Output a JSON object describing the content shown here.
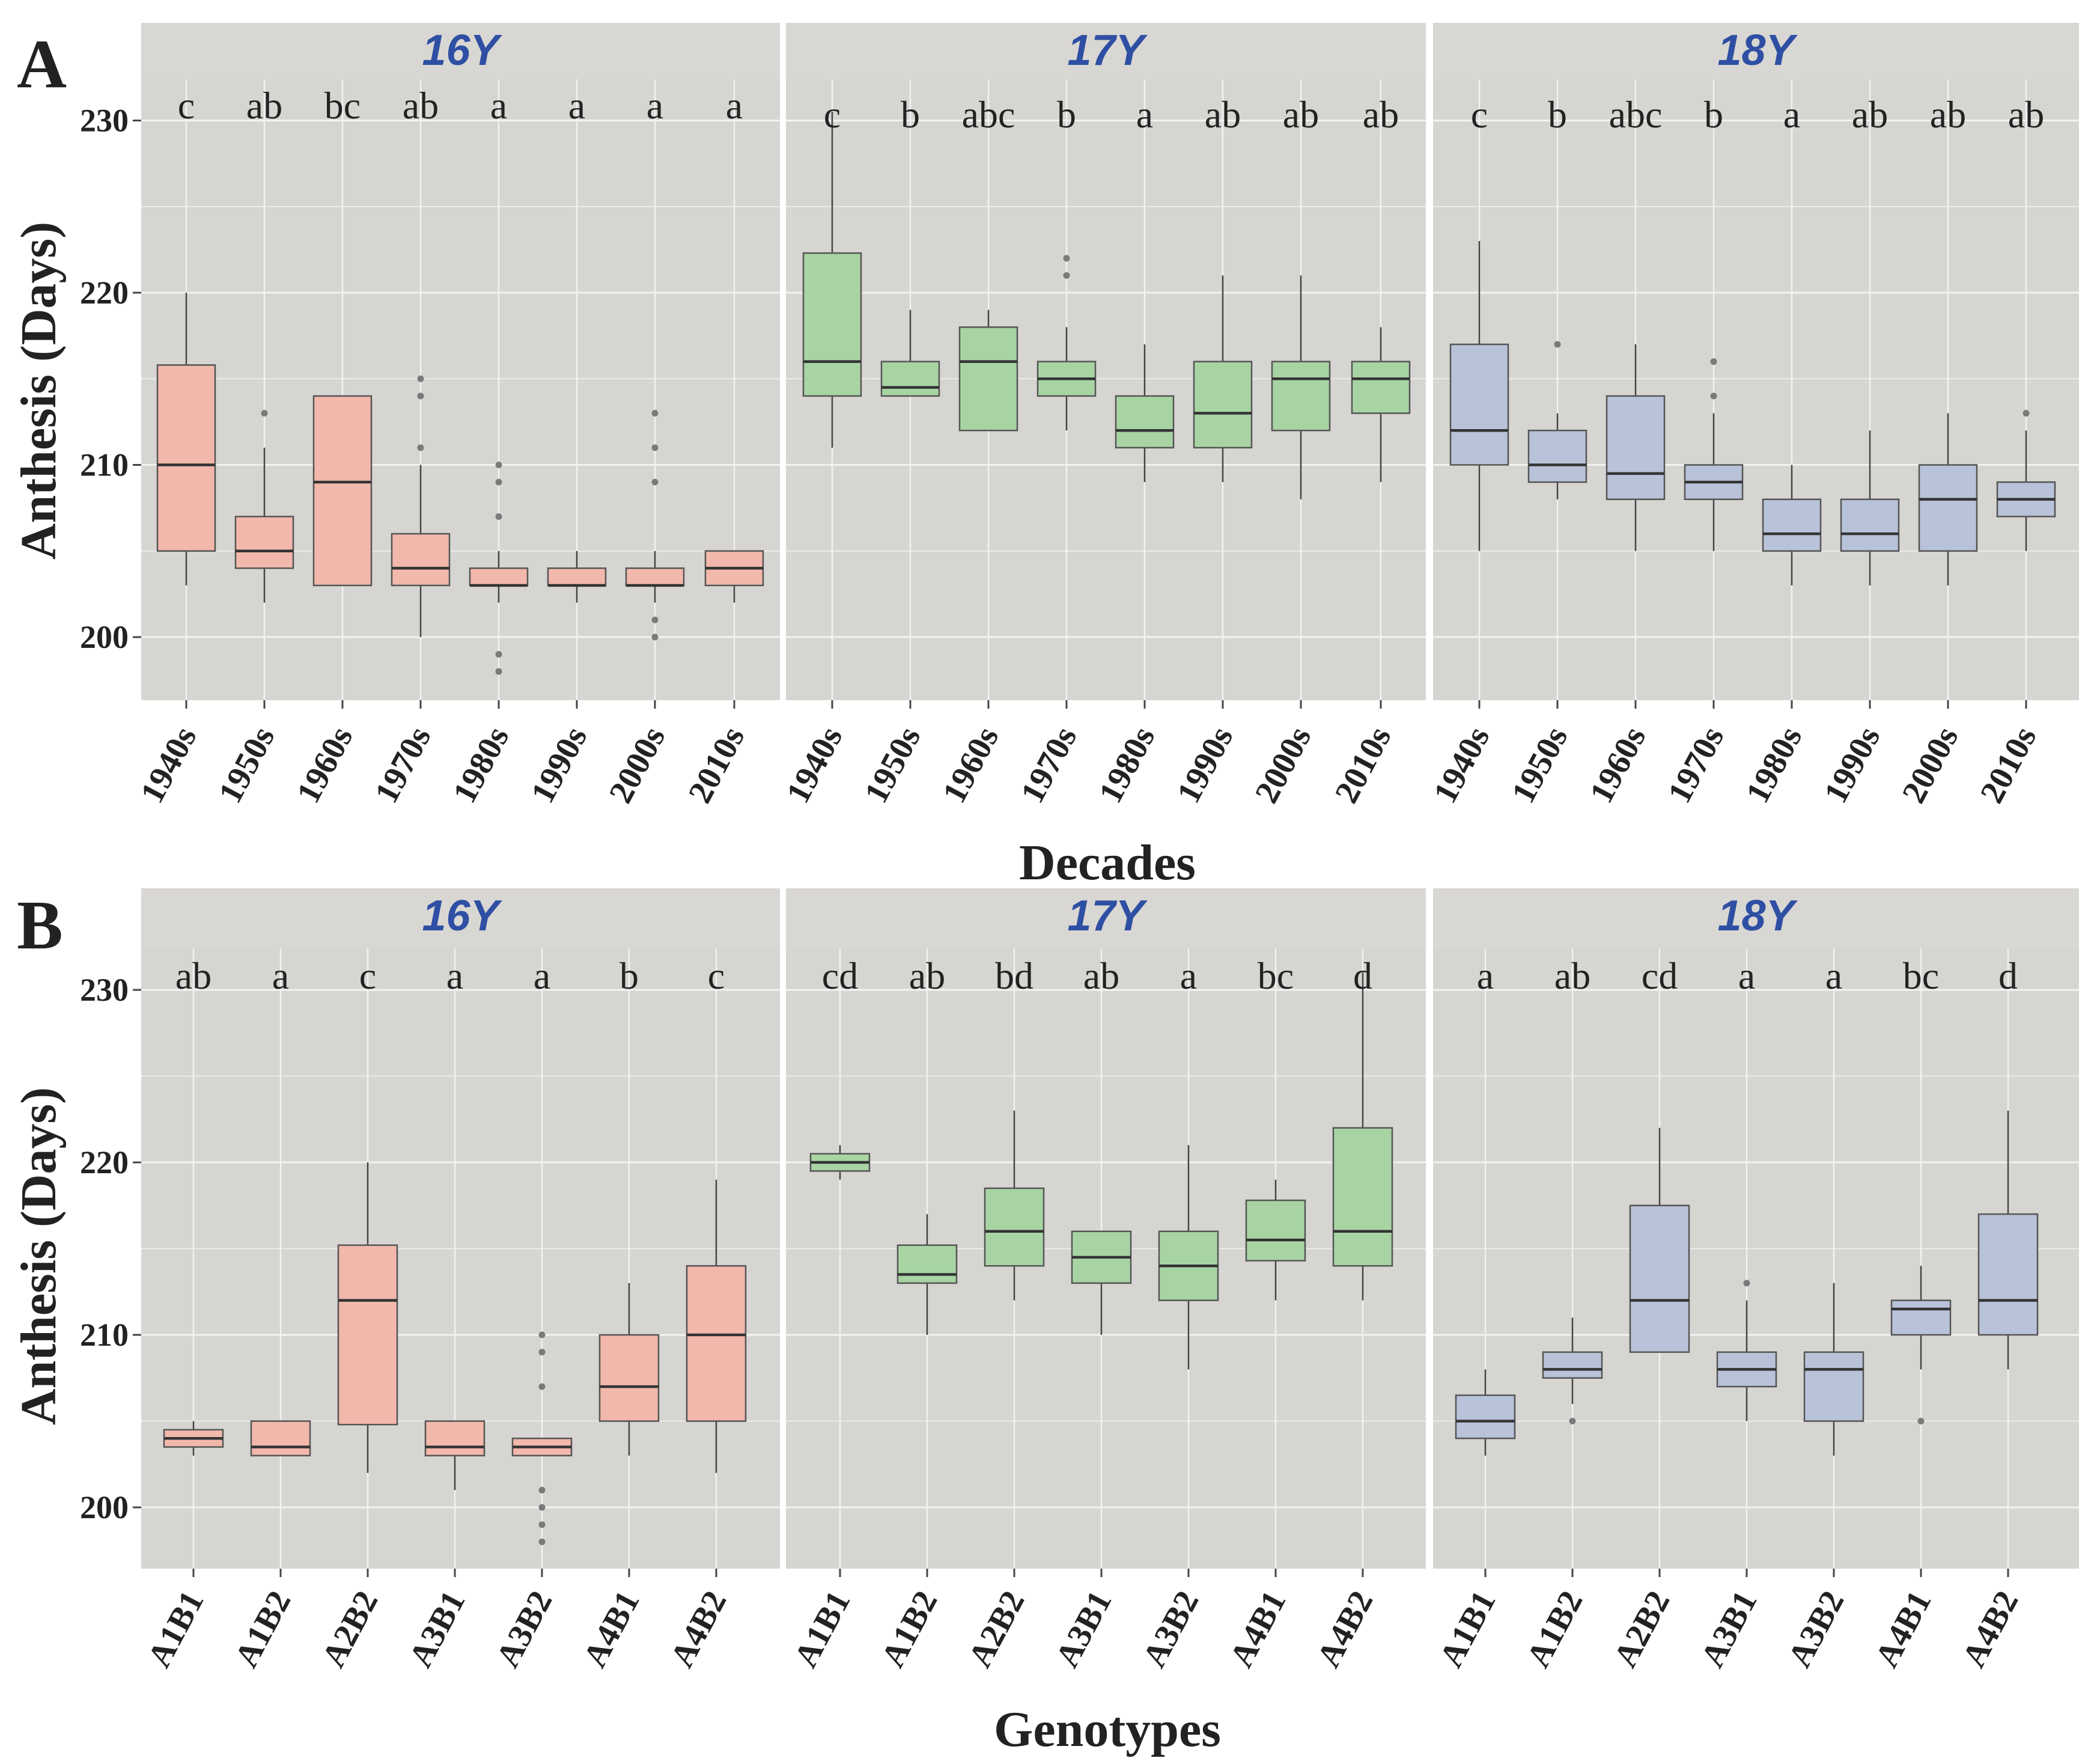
{
  "chart_data": [
    {
      "panel": "A",
      "type": "box",
      "xlabel": "Decades",
      "ylabel": "Anthesis (Days)",
      "ylim": [
        196,
        233
      ],
      "yticks": [
        200,
        210,
        220,
        230
      ],
      "categories": [
        "1940s",
        "1950s",
        "1960s",
        "1970s",
        "1980s",
        "1990s",
        "2000s",
        "2010s"
      ],
      "facets": [
        {
          "label": "16Y",
          "color": "#f2b8ab",
          "letters": [
            "c",
            "ab",
            "bc",
            "ab",
            "a",
            "a",
            "a",
            "a"
          ],
          "boxes": [
            {
              "min": 203,
              "q1": 205,
              "median": 210,
              "q3": 215.8,
              "max": 220,
              "outliers": []
            },
            {
              "min": 202,
              "q1": 204,
              "median": 205,
              "q3": 207,
              "max": 211,
              "outliers": [
                213
              ]
            },
            {
              "min": 203,
              "q1": 203,
              "median": 209,
              "q3": 214,
              "max": 214,
              "outliers": []
            },
            {
              "min": 200,
              "q1": 203,
              "median": 204,
              "q3": 206,
              "max": 210,
              "outliers": [
                211,
                214,
                215
              ]
            },
            {
              "min": 202,
              "q1": 203,
              "median": 203,
              "q3": 204,
              "max": 205,
              "outliers": [
                198,
                199,
                207,
                209,
                210
              ]
            },
            {
              "min": 202,
              "q1": 203,
              "median": 203,
              "q3": 204,
              "max": 205,
              "outliers": []
            },
            {
              "min": 202,
              "q1": 203,
              "median": 203,
              "q3": 204,
              "max": 205,
              "outliers": [
                200,
                201,
                209,
                211,
                213
              ]
            },
            {
              "min": 202,
              "q1": 203,
              "median": 204,
              "q3": 205,
              "max": 205,
              "outliers": []
            }
          ]
        },
        {
          "label": "17Y",
          "color": "#a8d4a4",
          "letters": [
            "c",
            "b",
            "abc",
            "b",
            "a",
            "ab",
            "ab",
            "ab"
          ],
          "boxes": [
            {
              "min": 211,
              "q1": 214,
              "median": 216,
              "q3": 222.3,
              "max": 230.5,
              "outliers": []
            },
            {
              "min": 214,
              "q1": 214,
              "median": 214.5,
              "q3": 216,
              "max": 219,
              "outliers": []
            },
            {
              "min": 212,
              "q1": 212,
              "median": 216,
              "q3": 218,
              "max": 219,
              "outliers": []
            },
            {
              "min": 212,
              "q1": 214,
              "median": 215,
              "q3": 216,
              "max": 218,
              "outliers": [
                221,
                222
              ]
            },
            {
              "min": 209,
              "q1": 211,
              "median": 212,
              "q3": 214,
              "max": 217,
              "outliers": []
            },
            {
              "min": 209,
              "q1": 211,
              "median": 213,
              "q3": 216,
              "max": 221,
              "outliers": []
            },
            {
              "min": 208,
              "q1": 212,
              "median": 215,
              "q3": 216,
              "max": 221,
              "outliers": []
            },
            {
              "min": 209,
              "q1": 213,
              "median": 215,
              "q3": 216,
              "max": 218,
              "outliers": []
            }
          ]
        },
        {
          "label": "18Y",
          "color": "#b8c2d8",
          "letters": [
            "c",
            "b",
            "abc",
            "b",
            "a",
            "ab",
            "ab",
            "ab"
          ],
          "boxes": [
            {
              "min": 205,
              "q1": 210,
              "median": 212,
              "q3": 217,
              "max": 223,
              "outliers": []
            },
            {
              "min": 208,
              "q1": 209,
              "median": 210,
              "q3": 212,
              "max": 213,
              "outliers": [
                217
              ]
            },
            {
              "min": 205,
              "q1": 208,
              "median": 209.5,
              "q3": 214,
              "max": 217,
              "outliers": []
            },
            {
              "min": 205,
              "q1": 208,
              "median": 209,
              "q3": 210,
              "max": 213,
              "outliers": [
                214,
                216
              ]
            },
            {
              "min": 203,
              "q1": 205,
              "median": 206,
              "q3": 208,
              "max": 210,
              "outliers": []
            },
            {
              "min": 203,
              "q1": 205,
              "median": 206,
              "q3": 208,
              "max": 212,
              "outliers": []
            },
            {
              "min": 203,
              "q1": 205,
              "median": 208,
              "q3": 210,
              "max": 213,
              "outliers": []
            },
            {
              "min": 205,
              "q1": 207,
              "median": 208,
              "q3": 209,
              "max": 212,
              "outliers": [
                213
              ]
            }
          ]
        }
      ]
    },
    {
      "panel": "B",
      "type": "box",
      "xlabel": "Genotypes",
      "ylabel": "Anthesis (Days)",
      "ylim": [
        196,
        233
      ],
      "yticks": [
        200,
        210,
        220,
        230
      ],
      "categories": [
        "A1B1",
        "A1B2",
        "A2B2",
        "A3B1",
        "A3B2",
        "A4B1",
        "A4B2"
      ],
      "facets": [
        {
          "label": "16Y",
          "color": "#f2b8ab",
          "letters": [
            "ab",
            "a",
            "c",
            "a",
            "a",
            "b",
            "c"
          ],
          "boxes": [
            {
              "min": 203,
              "q1": 203.5,
              "median": 204,
              "q3": 204.5,
              "max": 205,
              "outliers": []
            },
            {
              "min": 203,
              "q1": 203,
              "median": 203.5,
              "q3": 205,
              "max": 205,
              "outliers": []
            },
            {
              "min": 202,
              "q1": 204.8,
              "median": 212,
              "q3": 215.2,
              "max": 220,
              "outliers": []
            },
            {
              "min": 201,
              "q1": 203,
              "median": 203.5,
              "q3": 205,
              "max": 205,
              "outliers": []
            },
            {
              "min": 203,
              "q1": 203,
              "median": 203.5,
              "q3": 204,
              "max": 204,
              "outliers": [
                198,
                199,
                200,
                201,
                207,
                209,
                210
              ]
            },
            {
              "min": 203,
              "q1": 205,
              "median": 207,
              "q3": 210,
              "max": 213,
              "outliers": []
            },
            {
              "min": 202,
              "q1": 205,
              "median": 210,
              "q3": 214,
              "max": 219,
              "outliers": []
            }
          ]
        },
        {
          "label": "17Y",
          "color": "#a8d4a4",
          "letters": [
            "cd",
            "ab",
            "bd",
            "ab",
            "a",
            "bc",
            "d"
          ],
          "boxes": [
            {
              "min": 219,
              "q1": 219.5,
              "median": 220,
              "q3": 220.5,
              "max": 221,
              "outliers": []
            },
            {
              "min": 210,
              "q1": 213,
              "median": 213.5,
              "q3": 215.2,
              "max": 217,
              "outliers": []
            },
            {
              "min": 212,
              "q1": 214,
              "median": 216,
              "q3": 218.5,
              "max": 223,
              "outliers": []
            },
            {
              "min": 210,
              "q1": 213,
              "median": 214.5,
              "q3": 216,
              "max": 216,
              "outliers": []
            },
            {
              "min": 208,
              "q1": 212,
              "median": 214,
              "q3": 216,
              "max": 221,
              "outliers": []
            },
            {
              "min": 212,
              "q1": 214.3,
              "median": 215.5,
              "q3": 217.8,
              "max": 219,
              "outliers": []
            },
            {
              "min": 212,
              "q1": 214,
              "median": 216,
              "q3": 222,
              "max": 231,
              "outliers": []
            }
          ]
        },
        {
          "label": "18Y",
          "color": "#b8c2d8",
          "letters": [
            "a",
            "ab",
            "cd",
            "a",
            "a",
            "bc",
            "d"
          ],
          "boxes": [
            {
              "min": 203,
              "q1": 204,
              "median": 205,
              "q3": 206.5,
              "max": 208,
              "outliers": []
            },
            {
              "min": 206,
              "q1": 207.5,
              "median": 208,
              "q3": 209,
              "max": 211,
              "outliers": [
                205
              ]
            },
            {
              "min": 209,
              "q1": 209,
              "median": 212,
              "q3": 217.5,
              "max": 222,
              "outliers": []
            },
            {
              "min": 205,
              "q1": 207,
              "median": 208,
              "q3": 209,
              "max": 212,
              "outliers": [
                213
              ]
            },
            {
              "min": 203,
              "q1": 205,
              "median": 208,
              "q3": 209,
              "max": 213,
              "outliers": []
            },
            {
              "min": 208,
              "q1": 210,
              "median": 211.5,
              "q3": 212,
              "max": 214,
              "outliers": [
                205
              ]
            },
            {
              "min": 208,
              "q1": 210,
              "median": 212,
              "q3": 217,
              "max": 223,
              "outliers": []
            }
          ]
        }
      ]
    }
  ],
  "panel_labels": {
    "a": "A",
    "b": "B"
  }
}
